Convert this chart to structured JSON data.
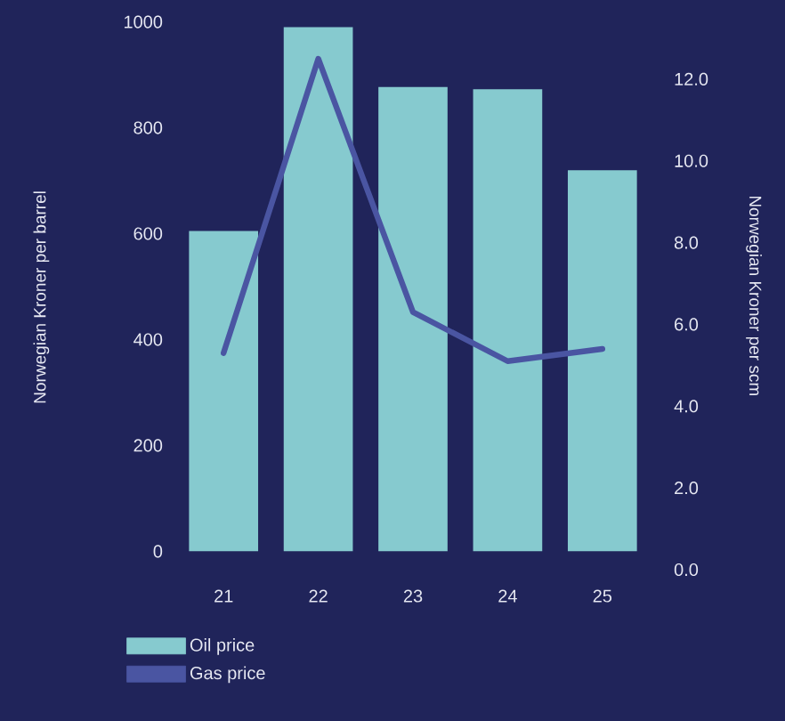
{
  "chart_data": {
    "type": "bar",
    "categories": [
      "21",
      "22",
      "23",
      "24",
      "25"
    ],
    "series": [
      {
        "name": "Oil price",
        "color": "#86cacf",
        "values": [
          605,
          990,
          877,
          873,
          720
        ]
      },
      {
        "name": "Gas price",
        "type": "line",
        "axis": "y2",
        "color": "#4a55a2",
        "values": [
          5.3,
          12.5,
          6.3,
          5.1,
          5.4
        ]
      }
    ],
    "ylabel": "Norwegian Kroner per barrel",
    "y2label": "Norwegian Kroner per scm",
    "ylim": [
      0,
      1000
    ],
    "yticks": [
      0,
      200,
      400,
      600,
      800,
      1000
    ],
    "y2lim": [
      0,
      13.4
    ],
    "y2ticks": [
      {
        "value": 0,
        "label": "0.0"
      },
      {
        "value": 2,
        "label": "2.0"
      },
      {
        "value": 4,
        "label": "4.0"
      },
      {
        "value": 6,
        "label": "6.0"
      },
      {
        "value": 8,
        "label": "8.0"
      },
      {
        "value": 10,
        "label": "10.0"
      },
      {
        "value": 12,
        "label": "12.0"
      }
    ],
    "legend": "bottom left",
    "grid": false
  }
}
